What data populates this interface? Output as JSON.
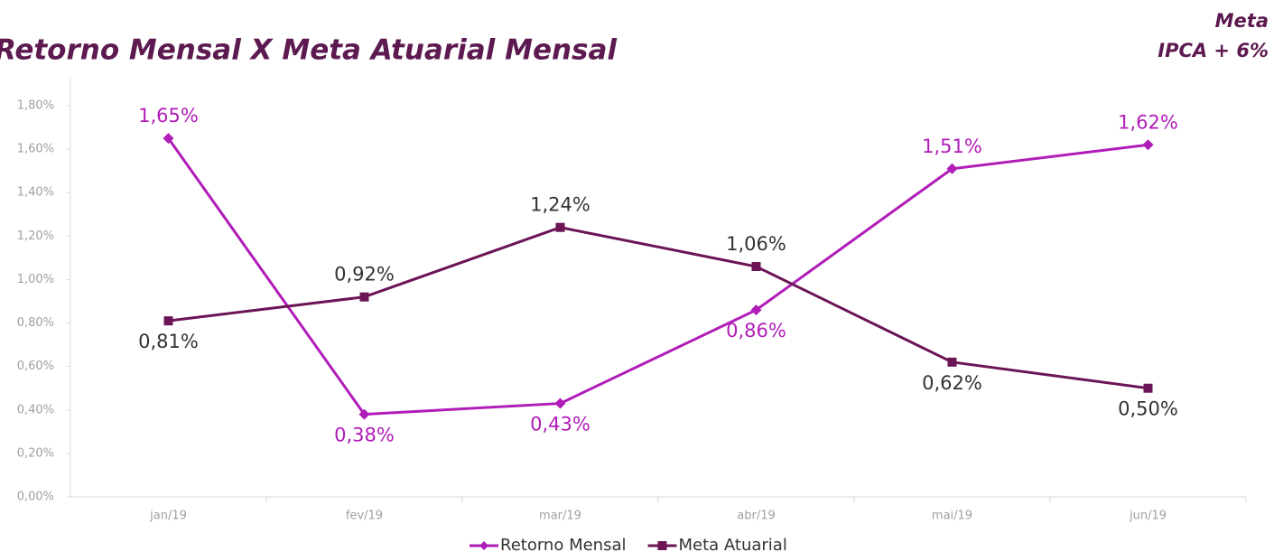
{
  "chart_data": {
    "type": "line",
    "title": "Retorno Mensal X Meta Atuarial Mensal",
    "annotations": [
      "Meta",
      "IPCA + 6%"
    ],
    "categories": [
      "jan/19",
      "fev/19",
      "mar/19",
      "abr/19",
      "mai/19",
      "jun/19"
    ],
    "series": [
      {
        "name": "Retorno Mensal",
        "color": "#b01cb8",
        "marker": "diamond",
        "values": [
          1.65,
          0.38,
          0.43,
          0.86,
          1.51,
          1.62
        ],
        "value_labels": [
          "1,65%",
          "0,38%",
          "0,43%",
          "0,86%",
          "1,51%",
          "1,62%"
        ]
      },
      {
        "name": "Meta Atuarial",
        "color": "#6b1456",
        "marker": "square",
        "values": [
          0.81,
          0.92,
          1.24,
          1.06,
          0.62,
          0.5
        ],
        "value_labels": [
          "0,81%",
          "0,92%",
          "1,24%",
          "1,06%",
          "0,62%",
          "0,50%"
        ]
      }
    ],
    "ylim": [
      0,
      1.8
    ],
    "yticks": [
      {
        "value": 0,
        "label": "0,00%"
      },
      {
        "value": 0.2,
        "label": "0,20%"
      },
      {
        "value": 0.4,
        "label": "0,40%"
      },
      {
        "value": 0.6,
        "label": "0,60%"
      },
      {
        "value": 0.8,
        "label": "0,80%"
      },
      {
        "value": 1.0,
        "label": "1,00%"
      },
      {
        "value": 1.2,
        "label": "1,20%"
      },
      {
        "value": 1.4,
        "label": "1,40%"
      },
      {
        "value": 1.6,
        "label": "1,60%"
      },
      {
        "value": 1.8,
        "label": "1,80%"
      }
    ],
    "grid": false,
    "legend": "bottom"
  }
}
